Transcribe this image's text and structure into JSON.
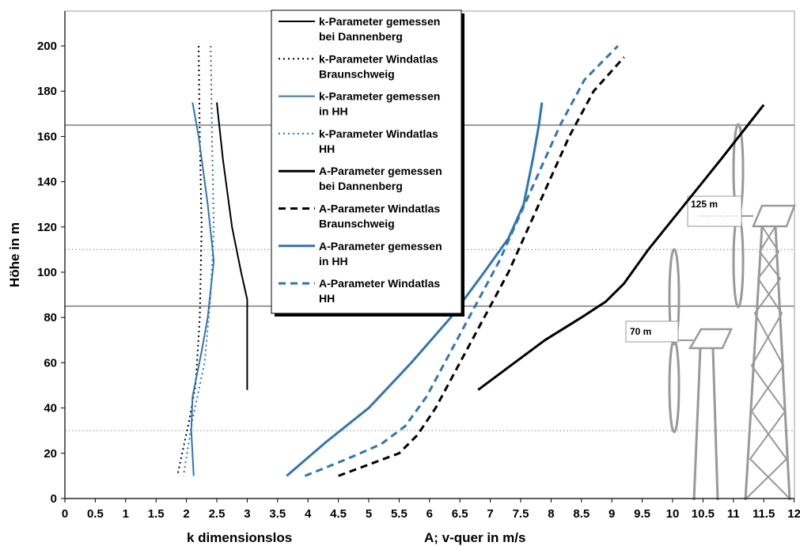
{
  "chart_data": {
    "type": "line",
    "ylabel": "Höhe in m",
    "xlabel_left": "k dimensionslos",
    "xlabel_right": "A; v-quer in m/s",
    "xlim": [
      0,
      12
    ],
    "ylim": [
      0,
      210
    ],
    "x_ticks": [
      "0",
      "0.5",
      "1",
      "1.5",
      "2",
      "2.5",
      "3",
      "3.5",
      "4",
      "4.5",
      "5",
      "5.5",
      "6",
      "6.5",
      "7",
      "7.5",
      "8",
      "8.5",
      "9",
      "9.5",
      "10",
      "10.5",
      "11",
      "11.5",
      "12"
    ],
    "y_ticks": [
      "0",
      "20",
      "40",
      "60",
      "80",
      "100",
      "120",
      "140",
      "160",
      "180",
      "200"
    ],
    "grid": false,
    "legend_position": "top-left-center",
    "reference_lines": [
      {
        "y": 30,
        "style": "dotted"
      },
      {
        "y": 85,
        "style": "solid"
      },
      {
        "y": 110,
        "style": "dotted"
      },
      {
        "y": 165,
        "style": "solid"
      }
    ],
    "annotations": [
      {
        "label": "125 m"
      },
      {
        "label": "70 m"
      }
    ],
    "series": [
      {
        "name": "k-Parameter gemessen bei Dannenberg",
        "color": "#000000",
        "dash": "solid",
        "width": 2,
        "points": [
          [
            2.5,
            175
          ],
          [
            2.6,
            150
          ],
          [
            2.75,
            120
          ],
          [
            2.9,
            100
          ],
          [
            3.0,
            88
          ],
          [
            3.0,
            70
          ],
          [
            3.0,
            48
          ]
        ]
      },
      {
        "name": "k-Parameter Windatlas Braunschweig",
        "color": "#000000",
        "dash": "dotted",
        "width": 2,
        "points": [
          [
            2.2,
            200
          ],
          [
            2.22,
            160
          ],
          [
            2.25,
            120
          ],
          [
            2.22,
            80
          ],
          [
            2.15,
            50
          ],
          [
            2.05,
            35
          ],
          [
            1.85,
            10
          ]
        ]
      },
      {
        "name": "k-Parameter gemessen in HH",
        "color": "#2e75b6",
        "dash": "solid",
        "width": 2,
        "points": [
          [
            2.1,
            175
          ],
          [
            2.2,
            160
          ],
          [
            2.35,
            130
          ],
          [
            2.45,
            105
          ],
          [
            2.35,
            80
          ],
          [
            2.25,
            65
          ],
          [
            2.1,
            45
          ],
          [
            2.08,
            30
          ],
          [
            2.12,
            10
          ]
        ]
      },
      {
        "name": "k-Parameter Windatlas HH",
        "color": "#2e75b6",
        "dash": "dotted",
        "width": 2,
        "points": [
          [
            2.4,
            200
          ],
          [
            2.42,
            160
          ],
          [
            2.45,
            120
          ],
          [
            2.4,
            90
          ],
          [
            2.3,
            60
          ],
          [
            2.1,
            35
          ],
          [
            1.95,
            10
          ]
        ]
      },
      {
        "name": "A-Parameter gemessen bei Dannenberg",
        "color": "#000000",
        "dash": "solid",
        "width": 3,
        "points": [
          [
            6.8,
            48
          ],
          [
            7.3,
            58
          ],
          [
            7.9,
            70
          ],
          [
            8.5,
            80
          ],
          [
            8.9,
            87
          ],
          [
            9.2,
            95
          ],
          [
            9.6,
            110
          ],
          [
            10.2,
            130
          ],
          [
            10.8,
            150
          ],
          [
            11.5,
            174
          ]
        ]
      },
      {
        "name": "A-Parameter Windatlas Braunschweig",
        "color": "#000000",
        "dash": "dashed",
        "width": 3,
        "points": [
          [
            4.5,
            10
          ],
          [
            5.0,
            15
          ],
          [
            5.5,
            20
          ],
          [
            5.8,
            28
          ],
          [
            6.1,
            40
          ],
          [
            6.5,
            60
          ],
          [
            6.9,
            80
          ],
          [
            7.3,
            100
          ],
          [
            7.8,
            130
          ],
          [
            8.3,
            160
          ],
          [
            8.7,
            180
          ],
          [
            9.2,
            195
          ]
        ]
      },
      {
        "name": "A-Parameter gemessen in HH",
        "color": "#2e75b6",
        "dash": "solid",
        "width": 3,
        "points": [
          [
            3.65,
            10
          ],
          [
            4.3,
            25
          ],
          [
            5.0,
            40
          ],
          [
            5.7,
            60
          ],
          [
            6.35,
            80
          ],
          [
            6.9,
            100
          ],
          [
            7.3,
            115
          ],
          [
            7.55,
            130
          ],
          [
            7.7,
            150
          ],
          [
            7.8,
            165
          ],
          [
            7.85,
            175
          ]
        ]
      },
      {
        "name": "A-Parameter Windatlas HH",
        "color": "#2e75b6",
        "dash": "dashed",
        "width": 3,
        "points": [
          [
            3.95,
            10
          ],
          [
            4.6,
            17
          ],
          [
            5.2,
            24
          ],
          [
            5.6,
            32
          ],
          [
            5.95,
            45
          ],
          [
            6.35,
            65
          ],
          [
            6.75,
            85
          ],
          [
            7.15,
            105
          ],
          [
            7.65,
            135
          ],
          [
            8.15,
            165
          ],
          [
            8.55,
            185
          ],
          [
            9.1,
            200
          ]
        ]
      }
    ]
  }
}
